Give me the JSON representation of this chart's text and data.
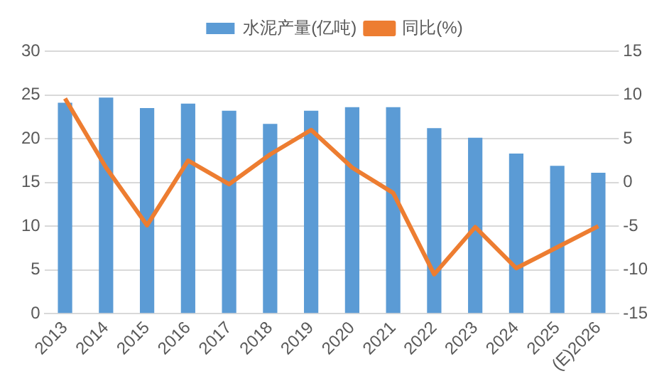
{
  "chart_data": {
    "type": "bar",
    "categories": [
      "2013",
      "2014",
      "2015",
      "2016",
      "2017",
      "2018",
      "2019",
      "2020",
      "2021",
      "2022",
      "2023",
      "2024",
      "2025",
      "(E)2026"
    ],
    "series": [
      {
        "name": "水泥产量(亿吨)",
        "color": "#5b9bd5",
        "values": [
          24.1,
          24.7,
          23.5,
          24.0,
          23.2,
          21.7,
          23.2,
          23.6,
          23.6,
          21.2,
          20.1,
          18.3,
          16.9,
          16.1
        ]
      },
      {
        "name": "同比(%)",
        "type": "line",
        "axis": "y2",
        "color": "#ed7d31",
        "values": [
          9.6,
          1.7,
          -4.9,
          2.5,
          -0.2,
          3.2,
          6.0,
          1.7,
          -1.2,
          -10.5,
          -5.1,
          -9.8,
          -7.4,
          -5.0
        ]
      }
    ],
    "ylim": [
      0,
      30
    ],
    "yticks": [
      0,
      5,
      10,
      15,
      20,
      25,
      30
    ],
    "y2lim": [
      -15,
      15
    ],
    "y2ticks": [
      -15,
      -10,
      -5,
      0,
      5,
      10,
      15
    ],
    "grid": "y",
    "legend": "top",
    "marker": "none",
    "line_style": "solid"
  }
}
